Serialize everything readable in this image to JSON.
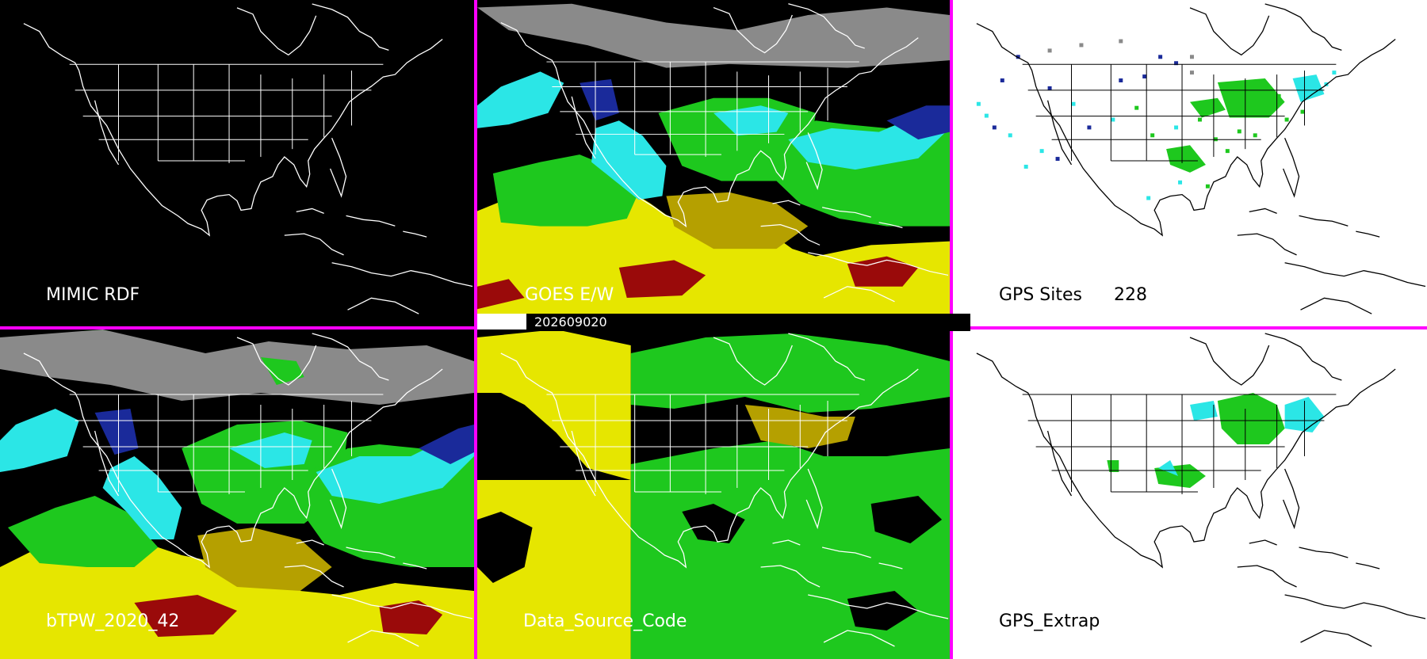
{
  "timestamp": "202609020",
  "panels": [
    {
      "label": "MIMIC RDF",
      "background": "#000000",
      "line_color": "#ffffff",
      "text_color": "#ffffff",
      "product": "empty"
    },
    {
      "label": "GOES E/W",
      "background": "#000000",
      "line_color": "#ffffff",
      "text_color": "#ffffff",
      "product": "tpw-goes"
    },
    {
      "label": "GPS Sites",
      "count": "228",
      "background": "#ffffff",
      "line_color": "#000000",
      "text_color": "#000000",
      "product": "gps-sites"
    },
    {
      "label": "bTPW_2020_42",
      "background": "#000000",
      "line_color": "#ffffff",
      "text_color": "#ffffff",
      "product": "tpw-blend"
    },
    {
      "label": "Data_Source_Code",
      "background": "#000000",
      "line_color": "#ffffff",
      "text_color": "#ffffff",
      "product": "source-code"
    },
    {
      "label": "GPS_Extrap",
      "background": "#ffffff",
      "line_color": "#000000",
      "text_color": "#000000",
      "product": "gps-extrap"
    }
  ],
  "colors": {
    "divider": "#ff00ff",
    "yellow": "#e6e600",
    "olive": "#b5a000",
    "green": "#1ec81e",
    "cyan": "#2be6e6",
    "blue": "#1a2a9a",
    "red": "#9a0a0a",
    "gray": "#8a8a8a"
  }
}
